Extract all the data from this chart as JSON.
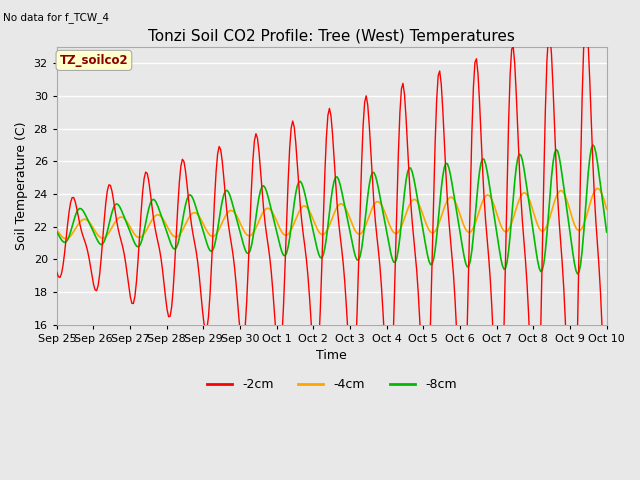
{
  "title": "Tonzi Soil CO2 Profile: Tree (West) Temperatures",
  "no_data_label": "No data for f_TCW_4",
  "xlabel": "Time",
  "ylabel": "Soil Temperature (C)",
  "ylim": [
    16,
    33
  ],
  "yticks": [
    16,
    18,
    20,
    22,
    24,
    26,
    28,
    30,
    32
  ],
  "legend_label": "TZ_soilco2",
  "series_labels": [
    "-2cm",
    "-4cm",
    "-8cm"
  ],
  "series_colors": [
    "#FF0000",
    "#FFA500",
    "#00BB00"
  ],
  "background_color": "#E8E8E8",
  "plot_bg_color": "#E8E8E8",
  "grid_color": "#FFFFFF",
  "title_fontsize": 11,
  "axis_fontsize": 9,
  "tick_fontsize": 8,
  "x_tick_labels": [
    "Sep 25",
    "Sep 26",
    "Sep 27",
    "Sep 28",
    "Sep 29",
    "Sep 30",
    "Oct 1",
    "Oct 2",
    "Oct 3",
    "Oct 4",
    "Oct 5",
    "Oct 6",
    "Oct 7",
    "Oct 8",
    "Oct 9",
    "Oct 10"
  ]
}
